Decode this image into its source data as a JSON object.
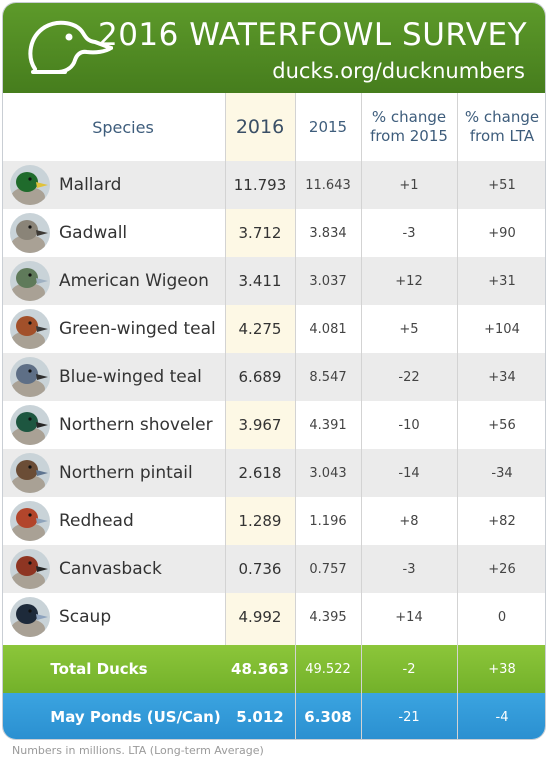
{
  "header": {
    "title": "2016 WATERFOWL SURVEY",
    "url": "ducks.org/ducknumbers"
  },
  "columns": {
    "species": "Species",
    "y2016": "2016",
    "y2015": "2015",
    "change2015": [
      "% change",
      "from 2015"
    ],
    "changeLta": [
      "% change",
      "from LTA"
    ]
  },
  "rows": [
    {
      "name": "Mallard",
      "y2016": "11.793",
      "y2015": "11.643",
      "c15": "+1",
      "clta": "+51",
      "icon": "mallard-icon",
      "head": "#1f6b2c",
      "bill": "#e0c23a"
    },
    {
      "name": "Gadwall",
      "y2016": "3.712",
      "y2015": "3.834",
      "c15": "-3",
      "clta": "+90",
      "icon": "gadwall-icon",
      "head": "#8a8478",
      "bill": "#3d3a35"
    },
    {
      "name": "American Wigeon",
      "y2016": "3.411",
      "y2015": "3.037",
      "c15": "+12",
      "clta": "+31",
      "icon": "american-wigeon-icon",
      "head": "#5f7a5a",
      "bill": "#9fb1c2"
    },
    {
      "name": "Green-winged teal",
      "y2016": "4.275",
      "y2015": "4.081",
      "c15": "+5",
      "clta": "+104",
      "icon": "green-winged-teal-icon",
      "head": "#a2502a",
      "bill": "#3a3a3a"
    },
    {
      "name": "Blue-winged teal",
      "y2016": "6.689",
      "y2015": "8.547",
      "c15": "-22",
      "clta": "+34",
      "icon": "blue-winged-teal-icon",
      "head": "#5e6f86",
      "bill": "#2f2f2f"
    },
    {
      "name": "Northern shoveler",
      "y2016": "3.967",
      "y2015": "4.391",
      "c15": "-10",
      "clta": "+56",
      "icon": "northern-shoveler-icon",
      "head": "#1d5640",
      "bill": "#262626"
    },
    {
      "name": "Northern pintail",
      "y2016": "2.618",
      "y2015": "3.043",
      "c15": "-14",
      "clta": "-34",
      "icon": "northern-pintail-icon",
      "head": "#6b4d36",
      "bill": "#5f7590"
    },
    {
      "name": "Redhead",
      "y2016": "1.289",
      "y2015": "1.196",
      "c15": "+8",
      "clta": "+82",
      "icon": "redhead-icon",
      "head": "#b2452b",
      "bill": "#8fa4bb"
    },
    {
      "name": "Canvasback",
      "y2016": "0.736",
      "y2015": "0.757",
      "c15": "-3",
      "clta": "+26",
      "icon": "canvasback-icon",
      "head": "#8e3522",
      "bill": "#262626"
    },
    {
      "name": "Scaup",
      "y2016": "4.992",
      "y2015": "4.395",
      "c15": "+14",
      "clta": "0",
      "icon": "scaup-icon",
      "head": "#1d2a3a",
      "bill": "#8ea3be"
    }
  ],
  "total": {
    "label": "Total Ducks",
    "y2016": "48.363",
    "y2015": "49.522",
    "c15": "-2",
    "clta": "+38"
  },
  "ponds": {
    "label": "May Ponds (US/Can)",
    "y2016": "5.012",
    "y2015": "6.308",
    "c15": "-21",
    "clta": "-4"
  },
  "footnote": "Numbers in millions. LTA (Long-term Average)",
  "colors": {
    "header_green": "#4e8a22",
    "total_green": "#7dbb31",
    "ponds_blue": "#2f97d6",
    "species_blue": "#3e5d7c"
  }
}
